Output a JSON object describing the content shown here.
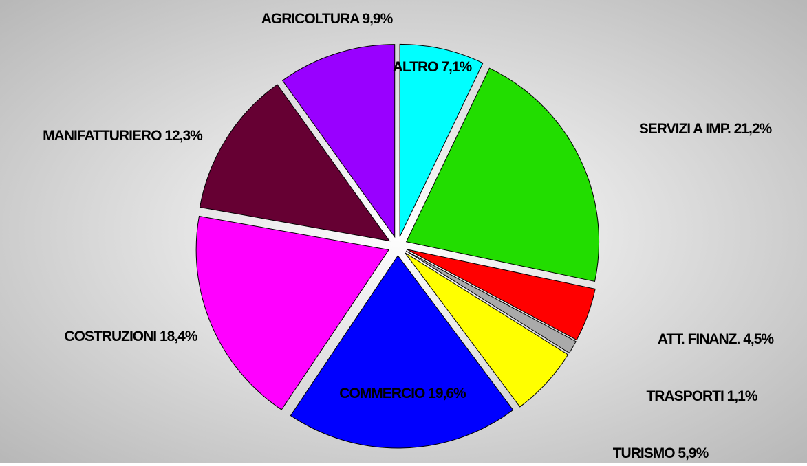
{
  "chart_data": {
    "type": "pie",
    "categories": [
      "ALTRO",
      "SERVIZI A IMP.",
      "ATT. FINANZ.",
      "TRASPORTI",
      "TURISMO",
      "COMMERCIO",
      "COSTRUZIONI",
      "MANIFATTURIERO",
      "AGRICOLTURA"
    ],
    "values": [
      7.1,
      21.2,
      4.5,
      1.1,
      5.9,
      19.6,
      18.4,
      12.3,
      9.9
    ],
    "value_labels": [
      "7,1%",
      "21,2%",
      "4,5%",
      "1,1%",
      "5,9%",
      "19,6%",
      "18,4%",
      "12,3%",
      "9,9%"
    ],
    "colors": [
      "#00ffff",
      "#22dd00",
      "#ff0000",
      "#aaaaaa",
      "#ffff00",
      "#0000ff",
      "#ff00ff",
      "#660033",
      "#9900ff"
    ]
  }
}
